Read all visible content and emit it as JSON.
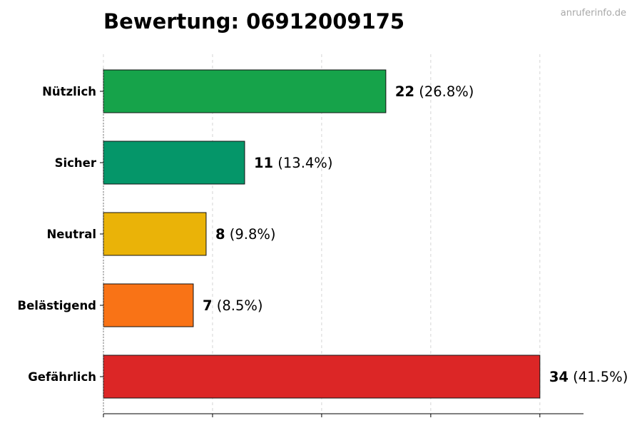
{
  "title": "Bewertung: 06912009175",
  "watermark": "anruferinfo.de",
  "chart_data": {
    "type": "bar",
    "orientation": "horizontal",
    "title": "Bewertung: 06912009175",
    "categories": [
      "Nützlich",
      "Sicher",
      "Neutral",
      "Belästigend",
      "Gefährlich"
    ],
    "values": [
      22,
      11,
      8,
      7,
      34
    ],
    "percent_labels": [
      "(26.8%)",
      "(13.4%)",
      "(9.8%)",
      "(8.5%)",
      "(41.5%)"
    ],
    "colors": [
      "#16a34a",
      "#059669",
      "#eab308",
      "#f97316",
      "#dc2626"
    ],
    "xlim": [
      0,
      37.4
    ],
    "x_ticks": [
      0,
      8.5,
      17,
      25.5,
      34
    ],
    "grid": "vertical-dashed",
    "xlabel": "",
    "ylabel": ""
  }
}
